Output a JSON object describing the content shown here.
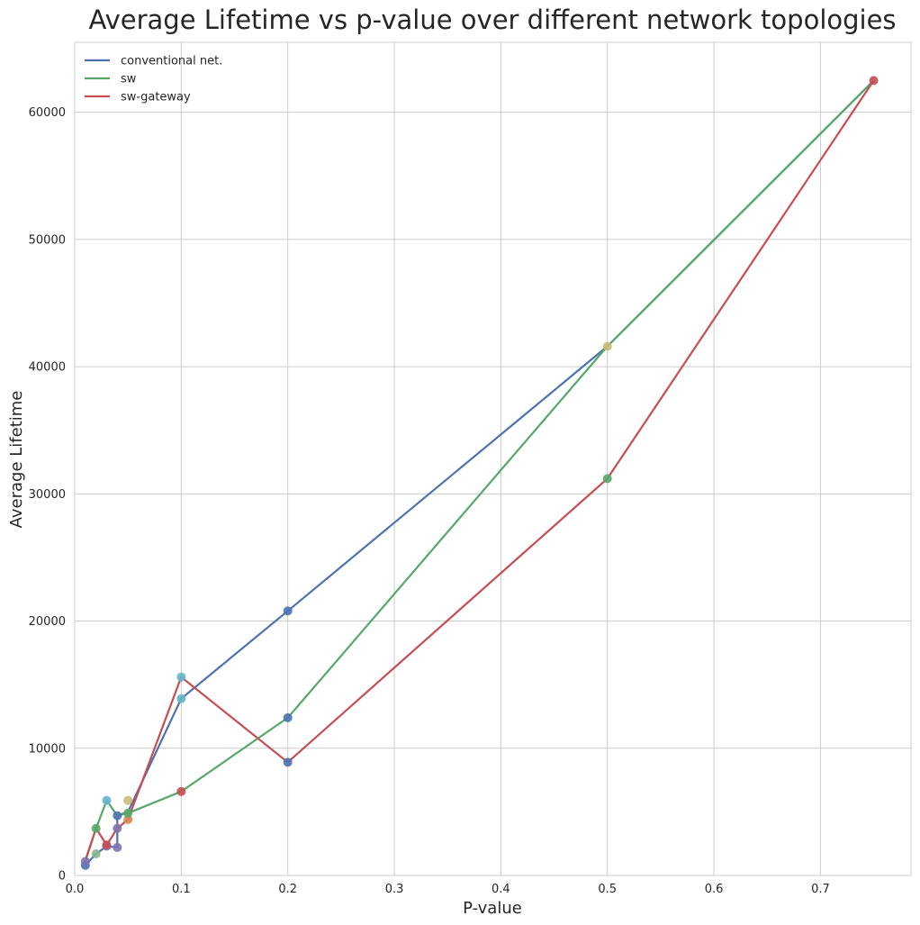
{
  "chart_data": {
    "type": "line",
    "title": "Average Lifetime vs p-value over different network topologies",
    "xlabel": "P-value",
    "ylabel": "Average Lifetime",
    "xlim": [
      0,
      0.785
    ],
    "ylim": [
      0,
      65500
    ],
    "xticks": [
      0.0,
      0.1,
      0.2,
      0.3,
      0.4,
      0.5,
      0.6,
      0.7
    ],
    "xtick_labels": [
      "0.0",
      "0.1",
      "0.2",
      "0.3",
      "0.4",
      "0.5",
      "0.6",
      "0.7"
    ],
    "yticks": [
      0,
      10000,
      20000,
      30000,
      40000,
      50000,
      60000
    ],
    "ytick_labels": [
      "0",
      "10000",
      "20000",
      "30000",
      "40000",
      "50000",
      "60000"
    ],
    "grid": true,
    "legend_position": "top-left",
    "series": [
      {
        "name": "conventional net.",
        "color": "#4c72b0",
        "points": [
          {
            "x": 0.01,
            "y": 800
          },
          {
            "x": 0.02,
            "y": 1700
          },
          {
            "x": 0.03,
            "y": 2300
          },
          {
            "x": 0.04,
            "y": 2200
          },
          {
            "x": 0.04,
            "y": 4700
          },
          {
            "x": 0.05,
            "y": 5000
          },
          {
            "x": 0.1,
            "y": 13900
          },
          {
            "x": 0.2,
            "y": 20800
          },
          {
            "x": 0.5,
            "y": 41600
          },
          {
            "x": 0.75,
            "y": 62500
          }
        ]
      },
      {
        "name": "sw",
        "color": "#55a868",
        "points": [
          {
            "x": 0.01,
            "y": 1100
          },
          {
            "x": 0.02,
            "y": 3700
          },
          {
            "x": 0.03,
            "y": 5900
          },
          {
            "x": 0.04,
            "y": 4700
          },
          {
            "x": 0.05,
            "y": 4900
          },
          {
            "x": 0.1,
            "y": 6600
          },
          {
            "x": 0.2,
            "y": 12400
          },
          {
            "x": 0.5,
            "y": 41600
          },
          {
            "x": 0.75,
            "y": 62500
          }
        ]
      },
      {
        "name": "sw-gateway",
        "color": "#c44e52",
        "points": [
          {
            "x": 0.01,
            "y": 1200
          },
          {
            "x": 0.02,
            "y": 3700
          },
          {
            "x": 0.03,
            "y": 2400
          },
          {
            "x": 0.04,
            "y": 3700
          },
          {
            "x": 0.05,
            "y": 4400
          },
          {
            "x": 0.1,
            "y": 15600
          },
          {
            "x": 0.2,
            "y": 8900
          },
          {
            "x": 0.5,
            "y": 31200
          },
          {
            "x": 0.75,
            "y": 62500
          }
        ]
      }
    ],
    "scatter_points": [
      {
        "x": 0.01,
        "y": 800,
        "color": "#4c72b0"
      },
      {
        "x": 0.01,
        "y": 1100,
        "color": "#8172b2"
      },
      {
        "x": 0.02,
        "y": 1700,
        "color": "#8cb58f"
      },
      {
        "x": 0.02,
        "y": 3700,
        "color": "#55a868"
      },
      {
        "x": 0.03,
        "y": 2300,
        "color": "#8172b2"
      },
      {
        "x": 0.03,
        "y": 2400,
        "color": "#c44e52"
      },
      {
        "x": 0.03,
        "y": 5900,
        "color": "#64b5cd"
      },
      {
        "x": 0.04,
        "y": 2200,
        "color": "#8172b2"
      },
      {
        "x": 0.04,
        "y": 3700,
        "color": "#8172b2"
      },
      {
        "x": 0.04,
        "y": 4700,
        "color": "#4c72b0"
      },
      {
        "x": 0.05,
        "y": 4400,
        "color": "#dd8452"
      },
      {
        "x": 0.05,
        "y": 4900,
        "color": "#55a868"
      },
      {
        "x": 0.05,
        "y": 5900,
        "color": "#ccb974"
      },
      {
        "x": 0.1,
        "y": 6600,
        "color": "#c44e52"
      },
      {
        "x": 0.1,
        "y": 13900,
        "color": "#64b5cd"
      },
      {
        "x": 0.1,
        "y": 15600,
        "color": "#64b5cd"
      },
      {
        "x": 0.2,
        "y": 8900,
        "color": "#4c72b0"
      },
      {
        "x": 0.2,
        "y": 12400,
        "color": "#4c72b0"
      },
      {
        "x": 0.2,
        "y": 20800,
        "color": "#4c72b0"
      },
      {
        "x": 0.5,
        "y": 31200,
        "color": "#55a868"
      },
      {
        "x": 0.5,
        "y": 41600,
        "color": "#ccb974"
      },
      {
        "x": 0.75,
        "y": 62500,
        "color": "#c44e52"
      }
    ]
  }
}
